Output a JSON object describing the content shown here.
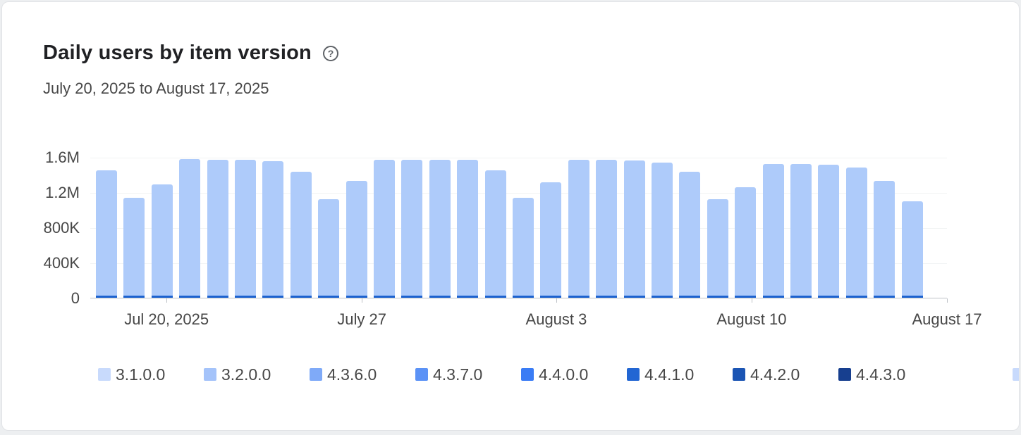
{
  "page": {
    "background": "#edeff1",
    "card_background": "#ffffff"
  },
  "header": {
    "title": "Daily users by item version",
    "date_range": "July 20, 2025 to August 17, 2025"
  },
  "icons": {
    "help": {
      "name": "help-circle-icon",
      "glyph": "?"
    }
  },
  "chart_data": {
    "type": "bar",
    "stacked": true,
    "title": "Daily users by item version",
    "subtitle": "July 20, 2025 to August 17, 2025",
    "xlabel": "",
    "ylabel": "",
    "grid": true,
    "ylim": [
      0,
      1600000
    ],
    "yticks": [
      {
        "label": "1.6M",
        "value": 1600000
      },
      {
        "label": "1.2M",
        "value": 1200000
      },
      {
        "label": "800K",
        "value": 800000
      },
      {
        "label": "400K",
        "value": 400000
      },
      {
        "label": "0",
        "value": 0
      }
    ],
    "xticks": [
      {
        "label": "Jul 20, 2025",
        "pos": 0.089
      },
      {
        "label": "July 27",
        "pos": 0.317
      },
      {
        "label": "August 3",
        "pos": 0.544
      },
      {
        "label": "August 10",
        "pos": 0.772
      },
      {
        "label": "August 17",
        "pos": 1.0
      }
    ],
    "stack_order": "bottom-to-top",
    "series": [
      {
        "name": "4.4.1.0",
        "color": "#1c62cf",
        "values": [
          25000,
          25000,
          25000,
          25000,
          25000,
          25000,
          25000,
          25000,
          25000,
          25000,
          25000,
          25000,
          25000,
          25000,
          25000,
          25000,
          25000,
          25000,
          25000,
          25000,
          25000,
          25000,
          25000,
          25000,
          25000,
          25000,
          25000,
          25000,
          25000,
          25000
        ]
      },
      {
        "name": "3.2.0.0",
        "color": "#aecbfa",
        "values": [
          1425000,
          1115000,
          1265000,
          1555000,
          1545000,
          1545000,
          1525000,
          1405000,
          1095000,
          1305000,
          1545000,
          1545000,
          1545000,
          1545000,
          1425000,
          1115000,
          1285000,
          1545000,
          1545000,
          1535000,
          1515000,
          1405000,
          1095000,
          1235000,
          1495000,
          1495000,
          1485000,
          1455000,
          1305000,
          1075000
        ]
      }
    ],
    "totals": [
      1450000,
      1140000,
      1290000,
      1580000,
      1570000,
      1570000,
      1550000,
      1430000,
      1120000,
      1330000,
      1570000,
      1570000,
      1570000,
      1570000,
      1450000,
      1140000,
      1310000,
      1570000,
      1570000,
      1560000,
      1540000,
      1430000,
      1120000,
      1260000,
      1520000,
      1520000,
      1510000,
      1480000,
      1330000,
      1100000
    ]
  },
  "legend": {
    "position": "bottom",
    "items": [
      {
        "label": "3.1.0.0",
        "color": "#c8dafc"
      },
      {
        "label": "3.2.0.0",
        "color": "#a4c3fa"
      },
      {
        "label": "4.3.6.0",
        "color": "#7faaf8"
      },
      {
        "label": "4.3.7.0",
        "color": "#5b92f6"
      },
      {
        "label": "4.4.0.0",
        "color": "#3a7cf5"
      },
      {
        "label": "4.4.1.0",
        "color": "#2266d3"
      },
      {
        "label": "4.4.2.0",
        "color": "#1b55b4"
      },
      {
        "label": "4.4.3.0",
        "color": "#173f8f"
      },
      {
        "label": "",
        "color": "#c8dafc",
        "partial": true
      }
    ]
  }
}
